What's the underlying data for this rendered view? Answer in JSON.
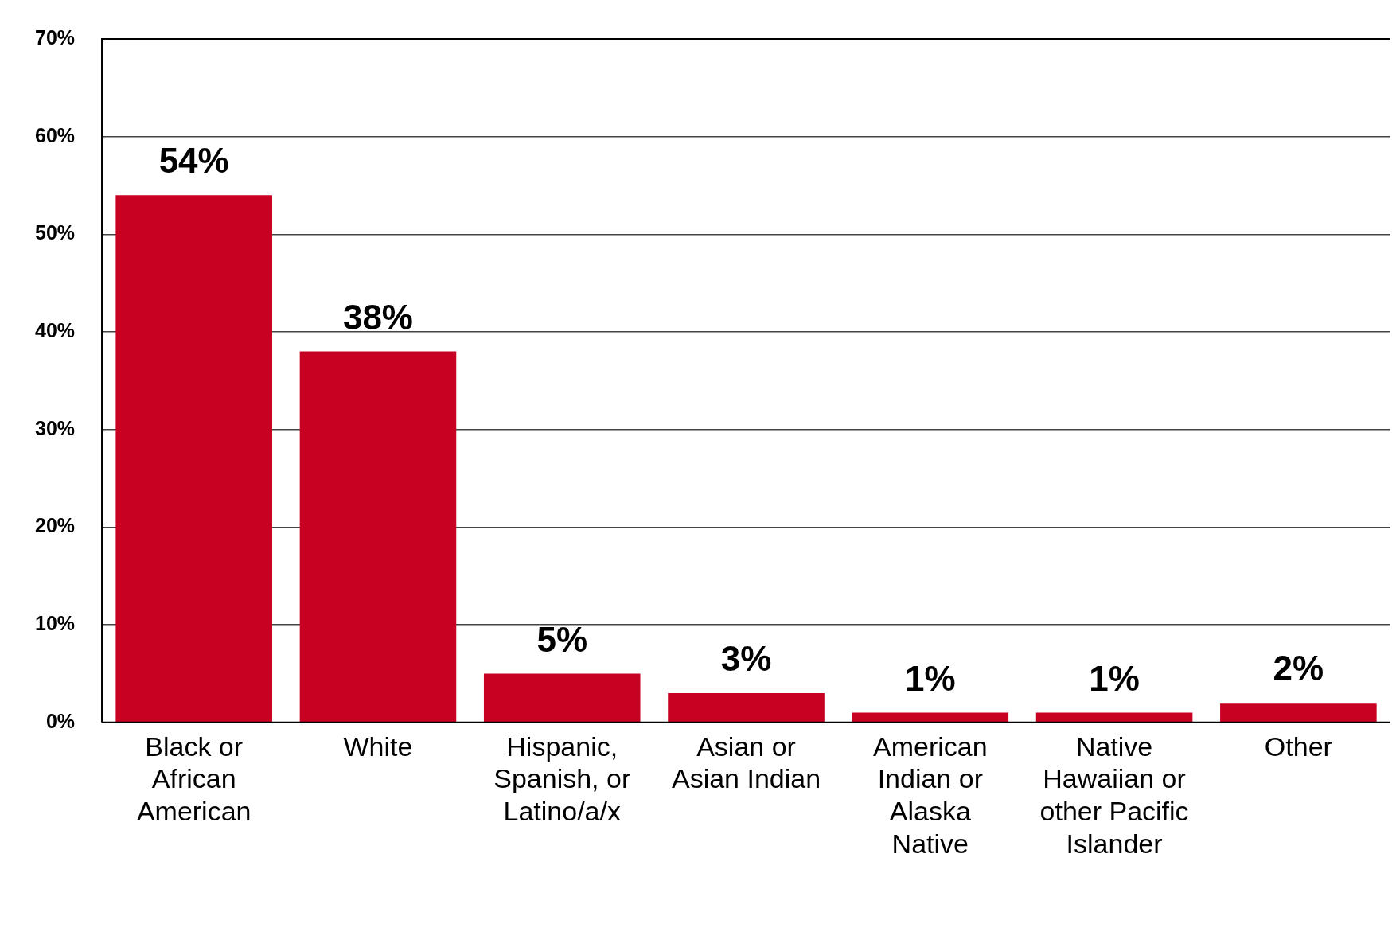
{
  "chart_data": {
    "type": "bar",
    "categories": [
      "Black or African American",
      "White",
      "Hispanic, Spanish, or Latino/a/x",
      "Asian or Asian Indian",
      "American Indian or Alaska Native",
      "Native Hawaiian or other Pacific Islander",
      "Other"
    ],
    "values": [
      54,
      38,
      5,
      3,
      1,
      1,
      2
    ],
    "color": "#c80021",
    "ylim": [
      0,
      70
    ],
    "yticks": [
      {
        "value": 0,
        "label": "0%"
      },
      {
        "value": 10,
        "label": "10%"
      },
      {
        "value": 20,
        "label": "20%"
      },
      {
        "value": 30,
        "label": "30%"
      },
      {
        "value": 40,
        "label": "40%"
      },
      {
        "value": 50,
        "label": "50%"
      },
      {
        "value": 60,
        "label": "60%"
      },
      {
        "value": 70,
        "label": "70%"
      }
    ],
    "value_labels": [
      "54%",
      "38%",
      "5%",
      "3%",
      "1%",
      "1%",
      "2%"
    ],
    "grid": "y",
    "legend": false
  }
}
